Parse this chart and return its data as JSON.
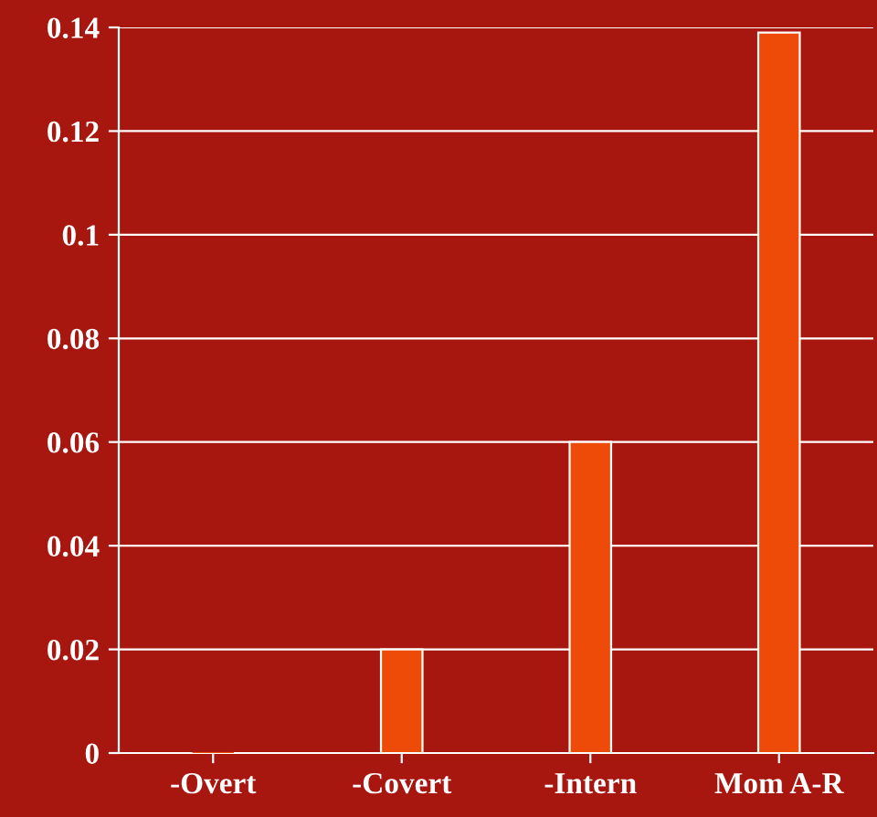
{
  "chart_data": {
    "type": "bar",
    "categories": [
      "-Overt",
      "-Covert",
      "-Intern",
      "Mom A-R"
    ],
    "values": [
      0,
      0.02,
      0.06,
      0.139
    ],
    "color": "#ee4a08",
    "ylim": [
      0,
      0.14
    ],
    "yticks": [
      0,
      0.02,
      0.04,
      0.06,
      0.08,
      0.1,
      0.12,
      0.14
    ],
    "grid": "y",
    "legend": false
  }
}
